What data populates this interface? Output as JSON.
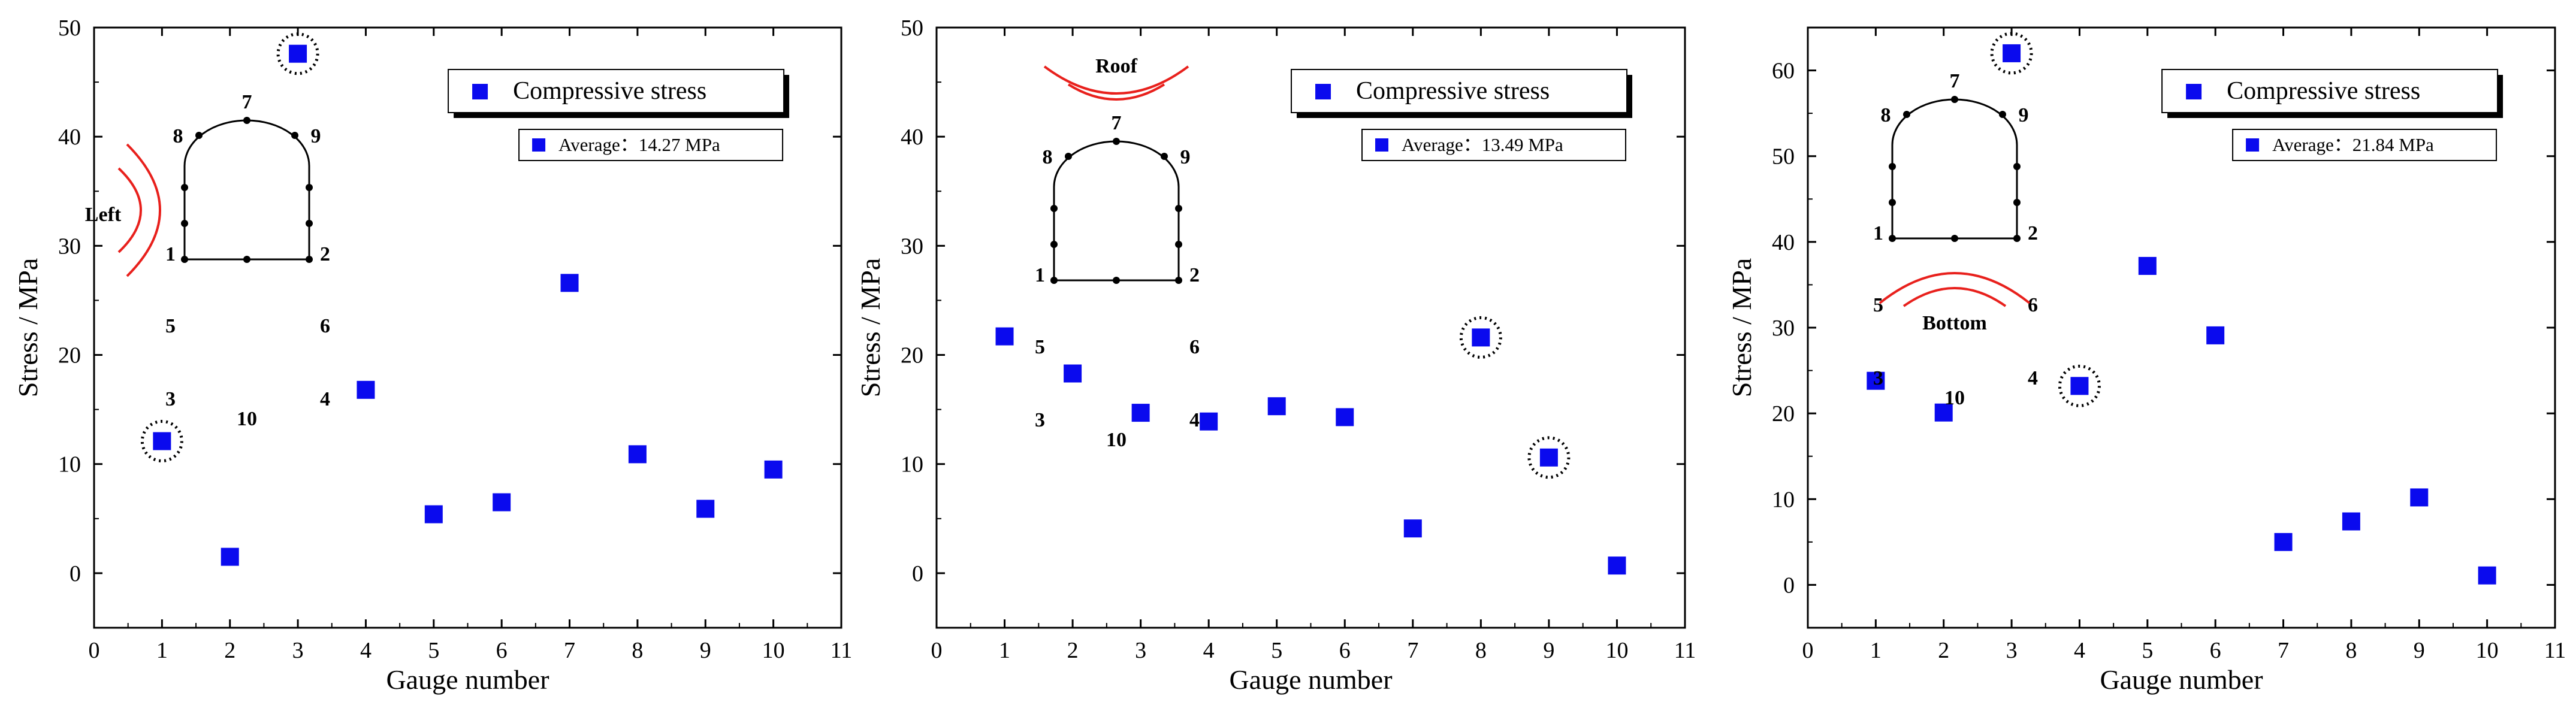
{
  "colors": {
    "marker": "#0a0aee",
    "ring": "#000000",
    "arc": "#e8201c",
    "axis": "#000000"
  },
  "chart_data": [
    {
      "type": "scatter",
      "xlabel": "Gauge number",
      "ylabel": "Stress  / MPa",
      "xlim": [
        0,
        11
      ],
      "ylim": [
        -5,
        50
      ],
      "xticks": [
        "0",
        "1",
        "2",
        "3",
        "4",
        "5",
        "6",
        "7",
        "8",
        "9",
        "10",
        "11"
      ],
      "yticks": [
        "0",
        "10",
        "20",
        "30",
        "40",
        "50"
      ],
      "series": [
        {
          "name": "Compressive stress",
          "x": [
            1,
            2,
            3,
            4,
            5,
            6,
            7,
            8,
            9,
            10
          ],
          "values": [
            12.1,
            1.5,
            47.6,
            16.8,
            5.4,
            6.5,
            26.6,
            10.9,
            5.9,
            9.5
          ]
        }
      ],
      "highlighted": [
        1,
        3
      ],
      "legend": "Compressive stress",
      "average_label": "Average：14.27 MPa",
      "inset": {
        "side": "left",
        "label": "Left",
        "gauges": [
          "1",
          "2",
          "3",
          "4",
          "5",
          "6",
          "7",
          "8",
          "9",
          "10"
        ]
      }
    },
    {
      "type": "scatter",
      "xlabel": "Gauge number",
      "ylabel": "Stress  / MPa",
      "xlim": [
        0,
        11
      ],
      "ylim": [
        -5,
        50
      ],
      "xticks": [
        "0",
        "1",
        "2",
        "3",
        "4",
        "5",
        "6",
        "7",
        "8",
        "9",
        "10",
        "11"
      ],
      "yticks": [
        "0",
        "10",
        "20",
        "30",
        "40",
        "50"
      ],
      "series": [
        {
          "name": "Compressive stress",
          "x": [
            1,
            2,
            3,
            4,
            5,
            6,
            7,
            8,
            9,
            10
          ],
          "values": [
            21.7,
            18.3,
            14.7,
            13.9,
            15.3,
            14.3,
            4.1,
            21.6,
            10.6,
            0.7
          ]
        }
      ],
      "highlighted": [
        8,
        9
      ],
      "legend": "Compressive stress",
      "average_label": "Average：13.49 MPa",
      "inset": {
        "side": "roof",
        "label": "Roof",
        "gauges": [
          "1",
          "2",
          "3",
          "4",
          "5",
          "6",
          "7",
          "8",
          "9",
          "10"
        ]
      }
    },
    {
      "type": "scatter",
      "xlabel": "Gauge number",
      "ylabel": "Stress  / MPa",
      "xlim": [
        0,
        11
      ],
      "ylim": [
        -5,
        65
      ],
      "xticks": [
        "0",
        "1",
        "2",
        "3",
        "4",
        "5",
        "6",
        "7",
        "8",
        "9",
        "10",
        "11"
      ],
      "yticks": [
        "0",
        "10",
        "20",
        "30",
        "40",
        "50",
        "60"
      ],
      "series": [
        {
          "name": "Compressive stress",
          "x": [
            1,
            2,
            3,
            4,
            5,
            6,
            7,
            8,
            9,
            10
          ],
          "values": [
            23.8,
            20.1,
            62.0,
            23.2,
            37.2,
            29.1,
            5.0,
            7.4,
            10.2,
            1.1
          ]
        }
      ],
      "highlighted": [
        3,
        4
      ],
      "legend": "Compressive stress",
      "average_label": "Average：21.84 MPa",
      "inset": {
        "side": "bottom",
        "label": "Bottom",
        "gauges": [
          "1",
          "2",
          "3",
          "4",
          "5",
          "6",
          "7",
          "8",
          "9",
          "10"
        ]
      }
    }
  ]
}
